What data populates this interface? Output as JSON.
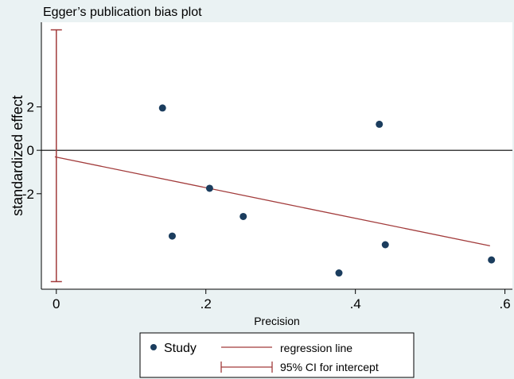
{
  "chart_data": {
    "type": "scatter",
    "title": "Egger’s publication bias plot",
    "xlabel": "Precision",
    "ylabel": "standardized effect",
    "xlim": [
      -0.02,
      0.61
    ],
    "ylim": [
      -6.4,
      5.9
    ],
    "xticks": [
      0,
      0.2,
      0.4,
      0.6
    ],
    "xtick_labels": [
      "0",
      ".2",
      ".4",
      ".6"
    ],
    "yticks": [
      2,
      0,
      -2
    ],
    "ytick_labels": [
      "2",
      "0",
      "-2"
    ],
    "series": [
      {
        "name": "Study",
        "points": [
          {
            "x": 0.142,
            "y": 1.95
          },
          {
            "x": 0.155,
            "y": -3.95
          },
          {
            "x": 0.205,
            "y": -1.75
          },
          {
            "x": 0.25,
            "y": -3.05
          },
          {
            "x": 0.378,
            "y": -5.65
          },
          {
            "x": 0.432,
            "y": 1.2
          },
          {
            "x": 0.44,
            "y": -4.35
          },
          {
            "x": 0.582,
            "y": -5.05
          }
        ]
      }
    ],
    "regression_line": {
      "name": "regression line",
      "x": [
        -0.002,
        0.58
      ],
      "y": [
        -0.3,
        -4.4
      ],
      "color": "#a23b3b"
    },
    "intercept_ci": {
      "name": "95% CI for intercept",
      "x": 0,
      "y_low": -6.05,
      "y_high": 5.55,
      "color": "#a23b3b"
    },
    "zero_line": 0,
    "grid": false,
    "legend_position": "bottom",
    "marker_color": "#1b3d5e"
  }
}
